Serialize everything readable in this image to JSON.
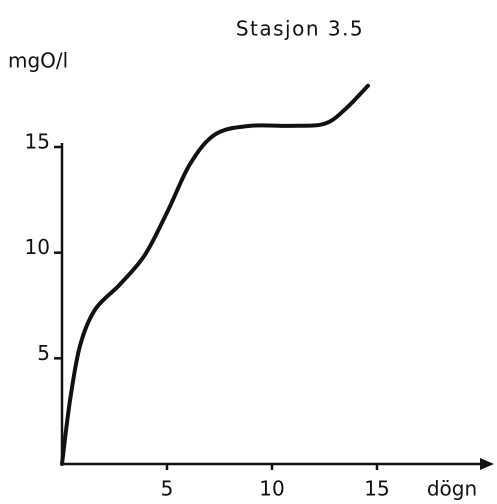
{
  "chart_data": {
    "type": "line",
    "title": "Stasjon 3.5",
    "y_label": "mgO/l",
    "x_label": "dögn",
    "x": [
      0,
      0.38,
      0.86,
      1.57,
      2.76,
      3.95,
      5.05,
      6.1,
      7.3,
      8.95,
      10.86,
      12.5,
      13.5,
      14.57
    ],
    "series": [
      {
        "name": "Stasjon 3.5",
        "color": "#111111",
        "values": [
          0,
          3.0,
          5.6,
          7.3,
          8.5,
          9.9,
          12.0,
          14.2,
          15.6,
          16.0,
          16.0,
          16.1,
          16.8,
          17.9
        ]
      }
    ],
    "xlim": [
      0,
      20
    ],
    "ylim": [
      0,
      15
    ],
    "xticks": [
      5,
      10,
      15
    ],
    "yticks": [
      5,
      10,
      15
    ],
    "grid": false
  }
}
